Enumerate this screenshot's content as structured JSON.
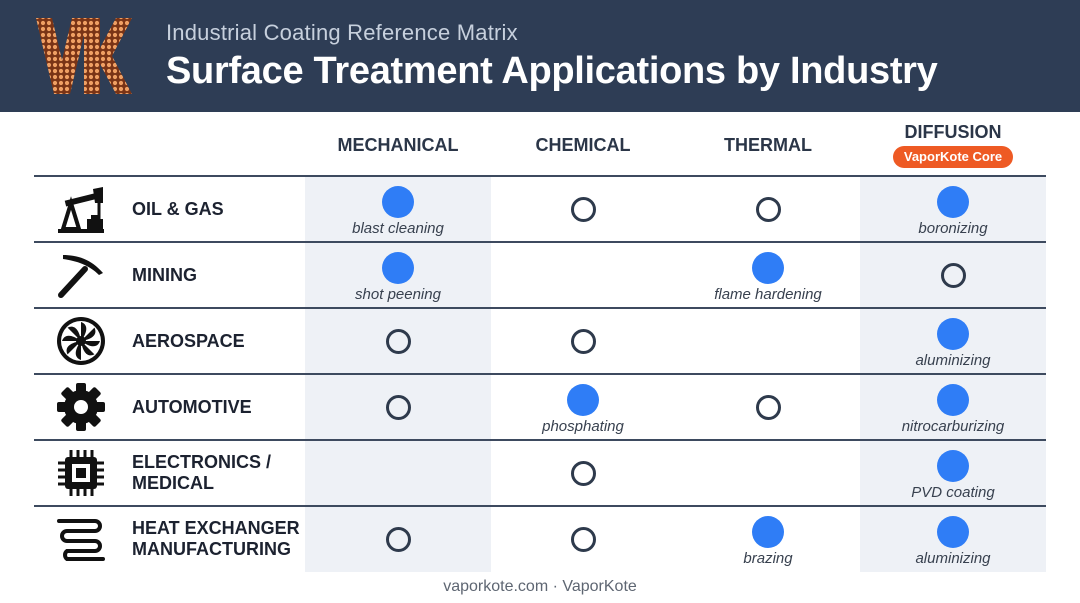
{
  "header": {
    "logo_text": "VK",
    "subtitle": "Industrial Coating Reference Matrix",
    "title": "Surface Treatment Applications by Industry"
  },
  "columns": [
    {
      "label": "MECHANICAL"
    },
    {
      "label": "CHEMICAL"
    },
    {
      "label": "THERMAL"
    },
    {
      "label": "DIFFUSION",
      "badge": "VaporKote Core"
    }
  ],
  "rows": [
    {
      "label": "OIL & GAS",
      "icon": "oil-pump-icon",
      "cells": [
        {
          "mark": "full",
          "note": "blast cleaning"
        },
        {
          "mark": "empty",
          "note": ""
        },
        {
          "mark": "empty",
          "note": ""
        },
        {
          "mark": "full",
          "note": "boronizing"
        }
      ]
    },
    {
      "label": "MINING",
      "icon": "pickaxe-icon",
      "cells": [
        {
          "mark": "full",
          "note": "shot peening"
        },
        {
          "mark": "none",
          "note": ""
        },
        {
          "mark": "full",
          "note": "flame hardening"
        },
        {
          "mark": "empty",
          "note": ""
        }
      ]
    },
    {
      "label": "AEROSPACE",
      "icon": "turbine-icon",
      "cells": [
        {
          "mark": "empty",
          "note": ""
        },
        {
          "mark": "empty",
          "note": ""
        },
        {
          "mark": "none",
          "note": ""
        },
        {
          "mark": "full",
          "note": "aluminizing"
        }
      ]
    },
    {
      "label": "AUTOMOTIVE",
      "icon": "gear-icon",
      "cells": [
        {
          "mark": "empty",
          "note": ""
        },
        {
          "mark": "full",
          "note": "phosphating"
        },
        {
          "mark": "empty",
          "note": ""
        },
        {
          "mark": "full",
          "note": "nitrocarburizing"
        }
      ]
    },
    {
      "label": "ELECTRONICS / MEDICAL",
      "icon": "chip-icon",
      "cells": [
        {
          "mark": "none",
          "note": ""
        },
        {
          "mark": "empty",
          "note": ""
        },
        {
          "mark": "none",
          "note": ""
        },
        {
          "mark": "full",
          "note": "PVD coating"
        }
      ]
    },
    {
      "label": "HEAT EXCHANGER MANUFACTURING",
      "icon": "coil-icon",
      "cells": [
        {
          "mark": "empty",
          "note": ""
        },
        {
          "mark": "empty",
          "note": ""
        },
        {
          "mark": "full",
          "note": "brazing"
        },
        {
          "mark": "full",
          "note": "aluminizing"
        }
      ]
    }
  ],
  "footer": "vaporkote.com · VaporKote",
  "colors": {
    "header_bg": "#2e3d55",
    "filled_dot": "#2f7df6",
    "badge": "#ee5a24",
    "stripe": "#eef1f6"
  }
}
